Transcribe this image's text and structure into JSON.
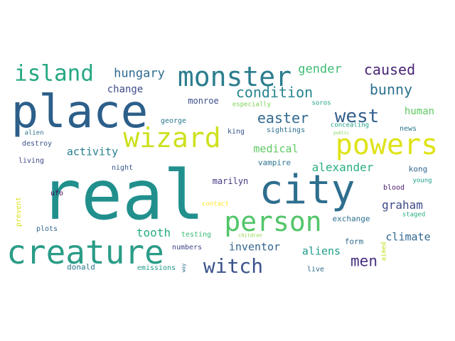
{
  "wordcloud": {
    "words": [
      {
        "text": "real",
        "color": "#21908d",
        "vertical": false
      },
      {
        "text": "place",
        "color": "#2c5f8a",
        "vertical": false
      },
      {
        "text": "creature",
        "color": "#2a9c87",
        "vertical": false
      },
      {
        "text": "city",
        "color": "#2e6e8e",
        "vertical": false
      },
      {
        "text": "monster",
        "color": "#2c7d8e",
        "vertical": false
      },
      {
        "text": "wizard",
        "color": "#cde11d",
        "vertical": false
      },
      {
        "text": "powers",
        "color": "#dfe318",
        "vertical": false
      },
      {
        "text": "person",
        "color": "#52c569",
        "vertical": false
      },
      {
        "text": "island",
        "color": "#26a883",
        "vertical": false
      },
      {
        "text": "witch",
        "color": "#3b528b",
        "vertical": false
      },
      {
        "text": "west",
        "color": "#355f8d",
        "vertical": false
      },
      {
        "text": "easter",
        "color": "#30698e",
        "vertical": false
      },
      {
        "text": "condition",
        "color": "#25858e",
        "vertical": false
      },
      {
        "text": "bunny",
        "color": "#2c728e",
        "vertical": false
      },
      {
        "text": "caused",
        "color": "#482475",
        "vertical": false
      },
      {
        "text": "gender",
        "color": "#3fbc73",
        "vertical": false
      },
      {
        "text": "hungary",
        "color": "#2f6b8e",
        "vertical": false
      },
      {
        "text": "men",
        "color": "#472f7d",
        "vertical": false
      },
      {
        "text": "graham",
        "color": "#3e4989",
        "vertical": false
      },
      {
        "text": "alexander",
        "color": "#29af7f",
        "vertical": false
      },
      {
        "text": "tooth",
        "color": "#25ab82",
        "vertical": false
      },
      {
        "text": "aliens",
        "color": "#1f9e89",
        "vertical": false
      },
      {
        "text": "inventor",
        "color": "#33638d",
        "vertical": false
      },
      {
        "text": "climate",
        "color": "#31688e",
        "vertical": false
      },
      {
        "text": "medical",
        "color": "#5ec962",
        "vertical": false
      },
      {
        "text": "activity",
        "color": "#277f8e",
        "vertical": false
      },
      {
        "text": "change",
        "color": "#3e4c8a",
        "vertical": false
      },
      {
        "text": "human",
        "color": "#5ec962",
        "vertical": false
      },
      {
        "text": "marilyn",
        "color": "#453781",
        "vertical": false
      },
      {
        "text": "monroe",
        "color": "#3d4e8a",
        "vertical": false
      },
      {
        "text": "kong",
        "color": "#31688e",
        "vertical": false
      },
      {
        "text": "vampire",
        "color": "#2c738e",
        "vertical": false
      },
      {
        "text": "exchange",
        "color": "#2d708e",
        "vertical": false
      },
      {
        "text": "form",
        "color": "#2f6c8e",
        "vertical": false
      },
      {
        "text": "donald",
        "color": "#2a768e",
        "vertical": false
      },
      {
        "text": "king",
        "color": "#3a548c",
        "vertical": false
      },
      {
        "text": "numbers",
        "color": "#404688",
        "vertical": false
      },
      {
        "text": "night",
        "color": "#38588c",
        "vertical": false
      },
      {
        "text": "plots",
        "color": "#31688e",
        "vertical": false
      },
      {
        "text": "ufo",
        "color": "#440154",
        "vertical": false
      },
      {
        "text": "george",
        "color": "#2a768e",
        "vertical": false
      },
      {
        "text": "especially",
        "color": "#7ad151",
        "vertical": false
      },
      {
        "text": "soros",
        "color": "#20a386",
        "vertical": false
      },
      {
        "text": "sightings",
        "color": "#2c728e",
        "vertical": false
      },
      {
        "text": "concealing",
        "color": "#1fa088",
        "vertical": false
      },
      {
        "text": "news",
        "color": "#2a788e",
        "vertical": false
      },
      {
        "text": "public",
        "color": "#7ad151",
        "vertical": false
      },
      {
        "text": "alien",
        "color": "#2e6f8e",
        "vertical": false
      },
      {
        "text": "destroy",
        "color": "#3b528b",
        "vertical": false
      },
      {
        "text": "living",
        "color": "#3f4788",
        "vertical": false
      },
      {
        "text": "blood",
        "color": "#481b6d",
        "vertical": false
      },
      {
        "text": "young",
        "color": "#1fa088",
        "vertical": false
      },
      {
        "text": "staged",
        "color": "#28ae80",
        "vertical": false
      },
      {
        "text": "contact",
        "color": "#fde725",
        "vertical": false
      },
      {
        "text": "testing",
        "color": "#3aba76",
        "vertical": false
      },
      {
        "text": "children",
        "color": "#8ed645",
        "vertical": false
      },
      {
        "text": "emissions",
        "color": "#1f9a8a",
        "vertical": false
      },
      {
        "text": "live",
        "color": "#2f6c8e",
        "vertical": false
      },
      {
        "text": "prevent",
        "color": "#d8e219",
        "vertical": true
      },
      {
        "text": "aimed",
        "color": "#c2df23",
        "vertical": true
      },
      {
        "text": "way",
        "color": "#31688e",
        "vertical": true
      }
    ]
  }
}
